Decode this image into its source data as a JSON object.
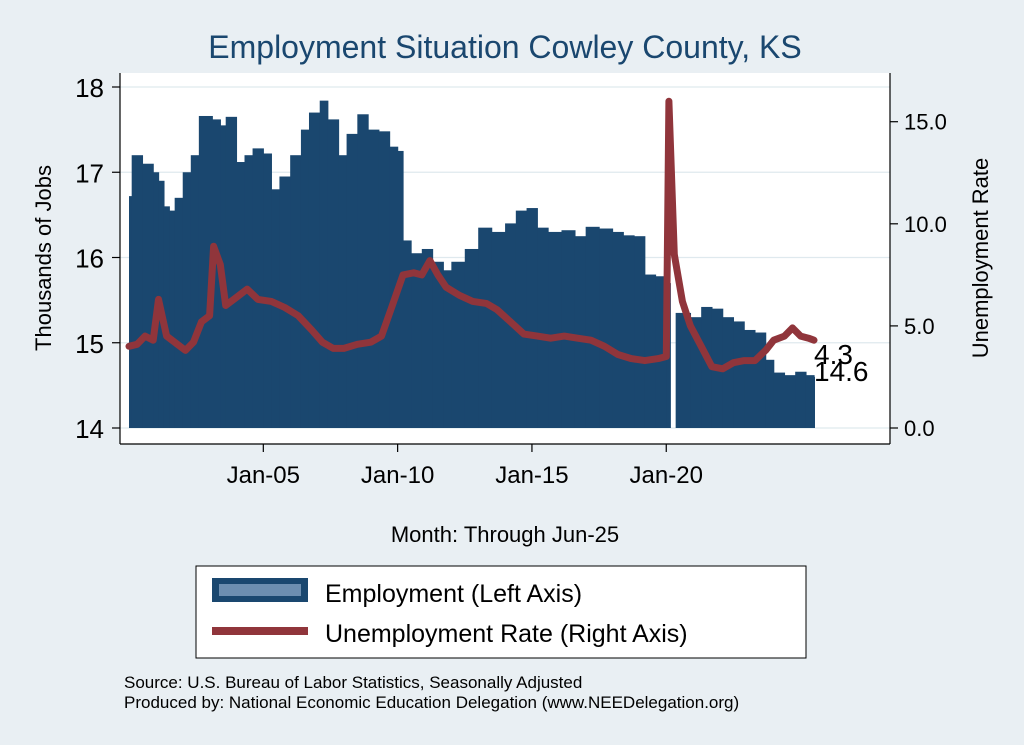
{
  "chart_data": {
    "type": "bar+line",
    "title": "Employment Situation Cowley  County, KS",
    "xlabel": "Month: Through Jun-25",
    "ylabel_left": "Thousands of Jobs",
    "ylabel_right": "Unemployment Rate",
    "ylim_left": [
      14,
      18
    ],
    "yticks_left": [
      "14",
      "15",
      "16",
      "17",
      "18"
    ],
    "ylim_right": [
      0,
      16.7
    ],
    "yticks_right": [
      "0.0",
      "5.0",
      "10.0",
      "15.0"
    ],
    "x_start": 2000.0,
    "x_end": 2025.5,
    "xticks": [
      {
        "label": "Jan-05",
        "year": 2005.0
      },
      {
        "label": "Jan-10",
        "year": 2010.0
      },
      {
        "label": "Jan-15",
        "year": 2015.0
      },
      {
        "label": "Jan-20",
        "year": 2020.0
      }
    ],
    "grid": true,
    "legend": "bottom-center",
    "series": [
      {
        "name": "Employment (Left Axis)",
        "axis": "left",
        "style": "bar",
        "color": "#1a476f",
        "points": [
          [
            2000.0,
            16.72
          ],
          [
            2000.1,
            17.2
          ],
          [
            2000.5,
            17.1
          ],
          [
            2000.9,
            17.0
          ],
          [
            2001.1,
            16.9
          ],
          [
            2001.3,
            16.6
          ],
          [
            2001.5,
            16.55
          ],
          [
            2001.7,
            16.7
          ],
          [
            2002.0,
            17.0
          ],
          [
            2002.3,
            17.2
          ],
          [
            2002.6,
            17.66
          ],
          [
            2003.1,
            17.62
          ],
          [
            2003.4,
            17.55
          ],
          [
            2003.6,
            17.65
          ],
          [
            2004.0,
            17.12
          ],
          [
            2004.3,
            17.2
          ],
          [
            2004.6,
            17.28
          ],
          [
            2005.0,
            17.22
          ],
          [
            2005.3,
            16.8
          ],
          [
            2005.6,
            16.95
          ],
          [
            2006.0,
            17.2
          ],
          [
            2006.4,
            17.5
          ],
          [
            2006.7,
            17.7
          ],
          [
            2007.1,
            17.84
          ],
          [
            2007.4,
            17.62
          ],
          [
            2007.8,
            17.2
          ],
          [
            2008.1,
            17.45
          ],
          [
            2008.5,
            17.68
          ],
          [
            2008.9,
            17.5
          ],
          [
            2009.3,
            17.48
          ],
          [
            2009.7,
            17.3
          ],
          [
            2010.0,
            17.25
          ],
          [
            2010.2,
            16.2
          ],
          [
            2010.5,
            16.05
          ],
          [
            2010.9,
            16.1
          ],
          [
            2011.3,
            15.95
          ],
          [
            2011.7,
            15.85
          ],
          [
            2012.0,
            15.95
          ],
          [
            2012.5,
            16.1
          ],
          [
            2013.0,
            16.35
          ],
          [
            2013.5,
            16.3
          ],
          [
            2014.0,
            16.4
          ],
          [
            2014.4,
            16.55
          ],
          [
            2014.8,
            16.58
          ],
          [
            2015.2,
            16.35
          ],
          [
            2015.6,
            16.3
          ],
          [
            2016.1,
            16.32
          ],
          [
            2016.6,
            16.25
          ],
          [
            2017.0,
            16.36
          ],
          [
            2017.5,
            16.34
          ],
          [
            2018.0,
            16.3
          ],
          [
            2018.4,
            16.26
          ],
          [
            2018.8,
            16.25
          ],
          [
            2019.2,
            15.8
          ],
          [
            2019.6,
            15.78
          ],
          [
            2020.0,
            15.7
          ],
          [
            2020.15,
            14.0
          ],
          [
            2020.35,
            15.35
          ],
          [
            2020.9,
            15.3
          ],
          [
            2021.3,
            15.42
          ],
          [
            2021.7,
            15.4
          ],
          [
            2022.1,
            15.3
          ],
          [
            2022.5,
            15.25
          ],
          [
            2022.9,
            15.15
          ],
          [
            2023.3,
            15.12
          ],
          [
            2023.7,
            14.8
          ],
          [
            2024.0,
            14.65
          ],
          [
            2024.4,
            14.62
          ],
          [
            2024.8,
            14.66
          ],
          [
            2025.2,
            14.62
          ],
          [
            2025.5,
            14.6
          ]
        ]
      },
      {
        "name": "Unemployment Rate (Right Axis)",
        "axis": "right",
        "style": "line",
        "color": "#90353b",
        "points": [
          [
            2000.0,
            4.0
          ],
          [
            2000.3,
            4.1
          ],
          [
            2000.6,
            4.5
          ],
          [
            2000.9,
            4.3
          ],
          [
            2001.1,
            6.3
          ],
          [
            2001.4,
            4.5
          ],
          [
            2001.8,
            4.1
          ],
          [
            2002.1,
            3.8
          ],
          [
            2002.4,
            4.2
          ],
          [
            2002.7,
            5.2
          ],
          [
            2003.0,
            5.5
          ],
          [
            2003.15,
            8.9
          ],
          [
            2003.4,
            8.0
          ],
          [
            2003.6,
            6.0
          ],
          [
            2004.0,
            6.4
          ],
          [
            2004.4,
            6.8
          ],
          [
            2004.8,
            6.3
          ],
          [
            2005.3,
            6.2
          ],
          [
            2005.8,
            5.9
          ],
          [
            2006.3,
            5.5
          ],
          [
            2006.8,
            4.8
          ],
          [
            2007.2,
            4.2
          ],
          [
            2007.6,
            3.9
          ],
          [
            2008.0,
            3.9
          ],
          [
            2008.5,
            4.1
          ],
          [
            2009.0,
            4.2
          ],
          [
            2009.4,
            4.5
          ],
          [
            2009.8,
            6.0
          ],
          [
            2010.2,
            7.5
          ],
          [
            2010.6,
            7.6
          ],
          [
            2010.9,
            7.5
          ],
          [
            2011.2,
            8.2
          ],
          [
            2011.5,
            7.5
          ],
          [
            2011.8,
            6.9
          ],
          [
            2012.3,
            6.5
          ],
          [
            2012.8,
            6.2
          ],
          [
            2013.3,
            6.1
          ],
          [
            2013.7,
            5.8
          ],
          [
            2014.2,
            5.2
          ],
          [
            2014.7,
            4.6
          ],
          [
            2015.2,
            4.5
          ],
          [
            2015.7,
            4.4
          ],
          [
            2016.2,
            4.5
          ],
          [
            2016.7,
            4.4
          ],
          [
            2017.2,
            4.3
          ],
          [
            2017.7,
            4.0
          ],
          [
            2018.2,
            3.6
          ],
          [
            2018.7,
            3.4
          ],
          [
            2019.2,
            3.3
          ],
          [
            2019.7,
            3.4
          ],
          [
            2020.0,
            3.5
          ],
          [
            2020.1,
            16.0
          ],
          [
            2020.3,
            8.5
          ],
          [
            2020.6,
            6.2
          ],
          [
            2020.9,
            5.0
          ],
          [
            2021.3,
            4.0
          ],
          [
            2021.7,
            3.0
          ],
          [
            2022.1,
            2.9
          ],
          [
            2022.5,
            3.2
          ],
          [
            2022.9,
            3.3
          ],
          [
            2023.3,
            3.3
          ],
          [
            2023.7,
            3.8
          ],
          [
            2024.0,
            4.3
          ],
          [
            2024.4,
            4.5
          ],
          [
            2024.7,
            4.9
          ],
          [
            2025.0,
            4.5
          ],
          [
            2025.3,
            4.4
          ],
          [
            2025.5,
            4.3
          ]
        ]
      }
    ],
    "annotations": [
      {
        "text": "4.3",
        "series": "Unemployment Rate (Right Axis)",
        "value": 4.3
      },
      {
        "text": "14.6",
        "series": "Employment (Left Axis)",
        "value": 14.6
      }
    ]
  },
  "legend": {
    "items": [
      {
        "label": "Employment (Left Axis)",
        "color": "#1a476f",
        "swatch_color": "#6d8eb0"
      },
      {
        "label": "Unemployment Rate (Right Axis)",
        "color": "#90353b"
      }
    ]
  },
  "source": {
    "line1": "Source: U.S. Bureau of Labor Statistics, Seasonally Adjusted",
    "line2": "Produced by: National Economic Education Delegation (www.NEEDelegation.org)"
  },
  "colors": {
    "background": "#e9eff3",
    "plot_background": "#ffffff",
    "title": "#1a476f",
    "grid": "#dfe9ee"
  }
}
